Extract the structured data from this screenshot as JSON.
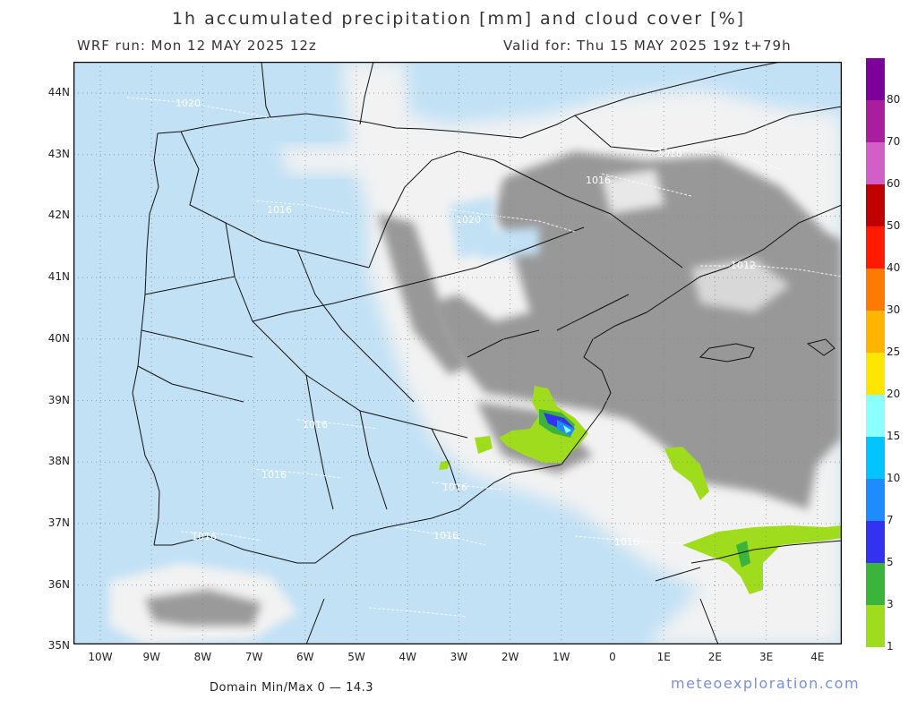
{
  "header": {
    "title": "1h accumulated precipitation [mm] and cloud cover [%]",
    "run": "WRF run: Mon 12 MAY 2025 12z",
    "valid": "Valid for: Thu 15 MAY 2025 19z  t+79h"
  },
  "axes": {
    "lat_labels": [
      "44N",
      "43N",
      "42N",
      "41N",
      "40N",
      "39N",
      "38N",
      "37N",
      "36N",
      "35N"
    ],
    "lon_labels": [
      "10W",
      "9W",
      "8W",
      "7W",
      "6W",
      "5W",
      "4W",
      "3W",
      "2W",
      "1W",
      "0",
      "1E",
      "2E",
      "3E",
      "4E"
    ]
  },
  "isobars": [
    "1020",
    "1016",
    "1020",
    "1016",
    "1012",
    "1016",
    "1016",
    "1016",
    "1016",
    "1016",
    "1016",
    "1016"
  ],
  "colorbar": {
    "labels": [
      "80",
      "70",
      "60",
      "50",
      "40",
      "30",
      "25",
      "20",
      "15",
      "10",
      "7",
      "5",
      "3",
      "1"
    ],
    "colors": [
      "#7a0099",
      "#aa1e9e",
      "#d25fc8",
      "#c00000",
      "#ff1a00",
      "#ff7a00",
      "#ffb400",
      "#ffe600",
      "#8cffff",
      "#00c4ff",
      "#1e8cff",
      "#3232f0",
      "#3cb43c",
      "#a0dc1e"
    ]
  },
  "footer": {
    "minmax": "Domain Min/Max 0 — 14.3",
    "brand": "meteoexploration.com"
  },
  "colors": {
    "sea_clear": "#c2e1f5",
    "cloud_white": "#f4f4f4",
    "cloud_grey": "#979797",
    "precip_light": "#a0dc1e"
  }
}
